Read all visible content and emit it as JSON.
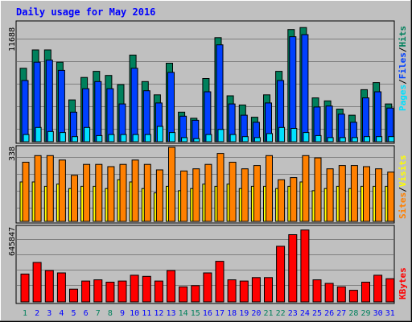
{
  "title": "Daily usage for May 2016",
  "colors": {
    "background": "#c0c0c0",
    "title": "#0000ff",
    "hits": "#00805c",
    "files": "#0040ff",
    "pages": "#00e0ff",
    "visits": "#ff8000",
    "sites": "#ffff00",
    "kbytes": "#ff0000",
    "weekend_label": "#00805c",
    "weekday_label": "#0000ff"
  },
  "legend": {
    "pages": "Pages",
    "files": "Files",
    "hits": "Hits",
    "sites": "Sites",
    "visits": "Visits",
    "kbytes": "KBytes",
    "sep": "/"
  },
  "chart_data": [
    {
      "type": "bar",
      "name": "hits-files-pages",
      "y_max_label": "11688",
      "ylim": [
        0,
        11688
      ],
      "categories": [
        "1",
        "2",
        "3",
        "4",
        "5",
        "6",
        "7",
        "8",
        "9",
        "10",
        "11",
        "12",
        "13",
        "14",
        "15",
        "16",
        "17",
        "18",
        "19",
        "20",
        "21",
        "22",
        "23",
        "24",
        "25",
        "26",
        "27",
        "28",
        "29",
        "30",
        "31"
      ],
      "weekend_days": [
        "1",
        "7",
        "8",
        "14",
        "15",
        "21",
        "22",
        "28",
        "29"
      ],
      "series": [
        {
          "name": "Hits",
          "values": [
            7200,
            9000,
            9000,
            7800,
            4100,
            6300,
            6900,
            6500,
            5600,
            8500,
            5900,
            4600,
            7700,
            2900,
            2300,
            6200,
            10200,
            4500,
            3600,
            2400,
            4600,
            6900,
            11000,
            11200,
            4300,
            4000,
            3200,
            2600,
            5100,
            5800,
            3700
          ]
        },
        {
          "name": "Files",
          "values": [
            6000,
            7800,
            8000,
            7000,
            2900,
            5200,
            5900,
            5200,
            3700,
            7200,
            5000,
            3800,
            6800,
            2500,
            2100,
            4900,
            9500,
            3700,
            2600,
            1900,
            3800,
            6000,
            10300,
            10500,
            3400,
            3500,
            2700,
            1900,
            4300,
            4900,
            3300
          ]
        },
        {
          "name": "Pages",
          "values": [
            700,
            1400,
            1000,
            900,
            500,
            1400,
            600,
            700,
            700,
            700,
            700,
            1500,
            900,
            400,
            300,
            700,
            1200,
            700,
            500,
            400,
            800,
            1400,
            1300,
            900,
            600,
            400,
            400,
            400,
            500,
            500,
            500
          ]
        }
      ]
    },
    {
      "type": "bar",
      "name": "visits-sites",
      "y_max_label": "338",
      "ylim": [
        0,
        338
      ],
      "series": [
        {
          "name": "Visits",
          "values": [
            270,
            300,
            300,
            280,
            210,
            260,
            260,
            250,
            260,
            280,
            260,
            235,
            338,
            230,
            240,
            260,
            310,
            270,
            240,
            255,
            300,
            190,
            200,
            300,
            290,
            240,
            255,
            255,
            250,
            240,
            225
          ]
        },
        {
          "name": "Sites",
          "values": [
            180,
            180,
            160,
            170,
            150,
            160,
            160,
            150,
            190,
            180,
            150,
            130,
            160,
            140,
            150,
            170,
            160,
            170,
            150,
            160,
            160,
            150,
            160,
            180,
            140,
            150,
            160,
            150,
            160,
            160,
            160
          ]
        }
      ]
    },
    {
      "type": "bar",
      "name": "kbytes",
      "y_max_label": "645847",
      "ylim": [
        0,
        645847
      ],
      "series": [
        {
          "name": "KBytes",
          "values": [
            240000,
            340000,
            270000,
            250000,
            110000,
            180000,
            190000,
            170000,
            180000,
            230000,
            220000,
            180000,
            270000,
            130000,
            140000,
            250000,
            350000,
            190000,
            180000,
            210000,
            210000,
            480000,
            580000,
            620000,
            190000,
            160000,
            130000,
            100000,
            170000,
            230000,
            200000
          ]
        }
      ]
    }
  ]
}
